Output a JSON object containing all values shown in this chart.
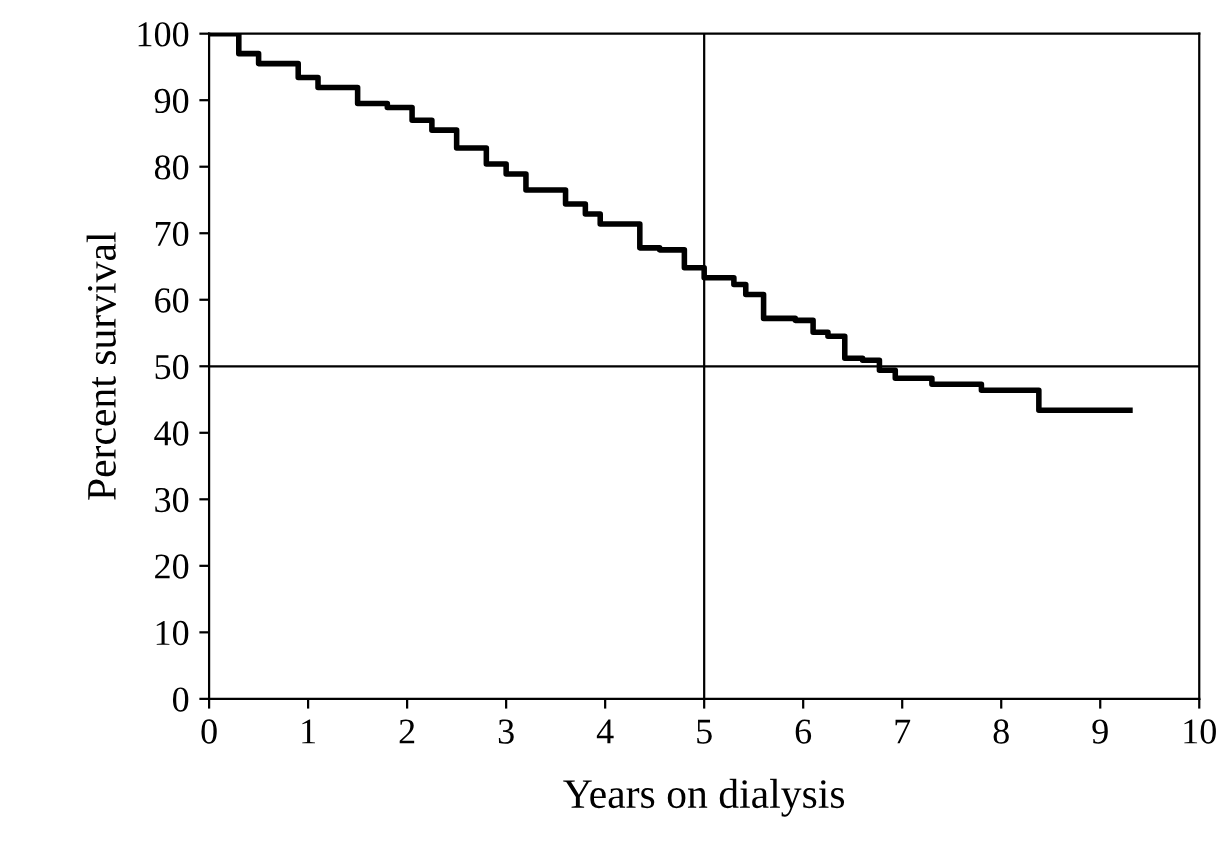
{
  "chart_data": {
    "type": "step",
    "xlabel": "Years on dialysis",
    "ylabel": "Percent survival",
    "x": [
      0,
      0.3,
      0.5,
      0.9,
      1.1,
      1.5,
      1.8,
      2.05,
      2.25,
      2.5,
      2.8,
      3.0,
      3.2,
      3.6,
      3.8,
      3.95,
      4.35,
      4.55,
      4.8,
      5.0,
      5.3,
      5.42,
      5.6,
      5.92,
      6.1,
      6.25,
      6.42,
      6.6,
      6.77,
      6.93,
      7.3,
      7.8,
      8.38,
      9.3
    ],
    "series": [
      {
        "color": "#000000",
        "values": [
          100,
          97,
          95.5,
          93.4,
          91.9,
          89.5,
          88.9,
          87,
          85.5,
          82.8,
          80.4,
          78.9,
          76.5,
          74.4,
          72.9,
          71.4,
          67.8,
          67.5,
          64.8,
          63.3,
          62.3,
          60.8,
          57.2,
          56.9,
          55.1,
          54.5,
          51.2,
          50.9,
          49.4,
          48.2,
          47.3,
          46.4,
          43.4,
          43.4
        ]
      }
    ],
    "xlim": [
      0,
      10
    ],
    "ylim": [
      0,
      100
    ],
    "xticks": [
      0,
      1,
      2,
      3,
      4,
      5,
      6,
      7,
      8,
      9,
      10
    ],
    "yticks": [
      0,
      10,
      20,
      30,
      40,
      50,
      60,
      70,
      80,
      90,
      100
    ],
    "ref_lines": [
      {
        "axis": "x",
        "value": 5,
        "color": "#000000"
      },
      {
        "axis": "y",
        "value": 50,
        "color": "#000000"
      }
    ],
    "grid": false,
    "legend": false,
    "line_style": "solid"
  }
}
